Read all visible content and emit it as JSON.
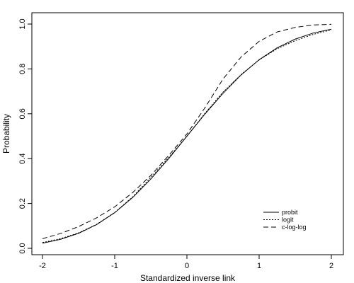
{
  "chart_data": {
    "type": "line",
    "title": "",
    "xlabel": "Standardized inverse link",
    "ylabel": "Probability",
    "xlim": [
      -2,
      2
    ],
    "ylim": [
      0,
      1
    ],
    "x_ticks": [
      "-2",
      "-1",
      "0",
      "1",
      "2"
    ],
    "y_ticks": [
      "0.0",
      "0.2",
      "0.4",
      "0.6",
      "0.8",
      "1.0"
    ],
    "grid": false,
    "legend_position": "bottom-right",
    "x": [
      -2,
      -1.75,
      -1.5,
      -1.25,
      -1,
      -0.75,
      -0.5,
      -0.25,
      0,
      0.25,
      0.5,
      0.75,
      1,
      1.25,
      1.5,
      1.75,
      2
    ],
    "series": [
      {
        "name": "probit",
        "line_style": "solid",
        "color": "#000000",
        "values": [
          0.023,
          0.04,
          0.067,
          0.106,
          0.159,
          0.227,
          0.309,
          0.401,
          0.5,
          0.599,
          0.691,
          0.773,
          0.841,
          0.894,
          0.933,
          0.96,
          0.977
        ]
      },
      {
        "name": "logit",
        "line_style": "dotted",
        "color": "#000000",
        "values": [
          0.026,
          0.043,
          0.069,
          0.107,
          0.16,
          0.23,
          0.316,
          0.406,
          0.5,
          0.602,
          0.697,
          0.775,
          0.84,
          0.89,
          0.926,
          0.954,
          0.974
        ]
      },
      {
        "name": "c-log-log",
        "line_style": "dashed",
        "color": "#000000",
        "values": [
          0.043,
          0.066,
          0.097,
          0.136,
          0.185,
          0.249,
          0.325,
          0.415,
          0.51,
          0.627,
          0.755,
          0.853,
          0.923,
          0.965,
          0.985,
          0.996,
          0.999
        ]
      }
    ]
  }
}
